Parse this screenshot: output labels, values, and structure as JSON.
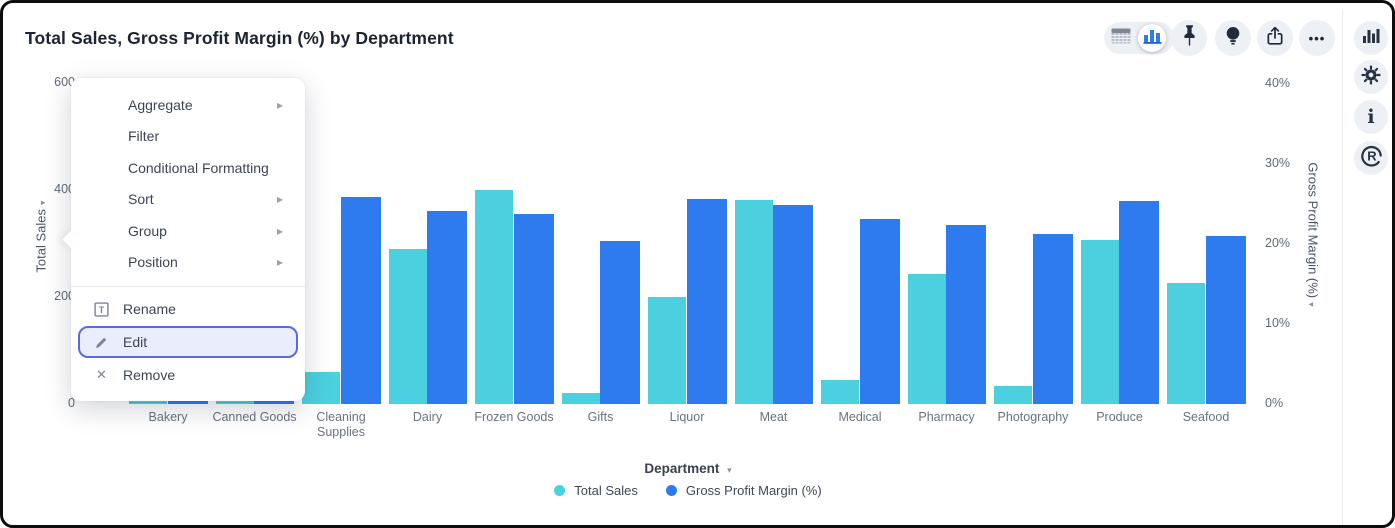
{
  "window": {
    "title": "Total Sales, Gross Profit Margin (%) by Department"
  },
  "toolbar": {
    "view_toggle": {
      "options": [
        "table-view",
        "chart-view"
      ],
      "selected": "chart-view"
    },
    "icons": [
      "table-icon",
      "bar-chart-icon",
      "pin-icon",
      "lightbulb-icon",
      "share-icon",
      "ellipsis-icon"
    ],
    "ellipsis_glyph": "•••"
  },
  "sidebar": {
    "icons": [
      "bar-chart-icon",
      "gear-icon",
      "info-icon",
      "reveal-logo-icon"
    ],
    "info_glyph": "i",
    "logo_glyph": "R"
  },
  "context_menu": {
    "items": [
      {
        "label": "Aggregate",
        "submenu": true
      },
      {
        "label": "Filter",
        "submenu": false
      },
      {
        "label": "Conditional Formatting",
        "submenu": false
      },
      {
        "label": "Sort",
        "submenu": true
      },
      {
        "label": "Group",
        "submenu": true
      },
      {
        "label": "Position",
        "submenu": true
      }
    ],
    "actions": [
      {
        "label": "Rename",
        "icon": "rename-icon",
        "highlighted": false
      },
      {
        "label": "Edit",
        "icon": "edit-icon",
        "highlighted": true
      },
      {
        "label": "Remove",
        "icon": "remove-icon",
        "highlighted": false
      }
    ],
    "submenu_glyph": "▸"
  },
  "chart_data": {
    "type": "bar",
    "title": "Total Sales, Gross Profit Margin (%) by Department",
    "categories": [
      "Bakery",
      "Canned Goods",
      "Cleaning Supplies",
      "Dairy",
      "Frozen Goods",
      "Gifts",
      "Liquor",
      "Meat",
      "Medical",
      "Pharmacy",
      "Photography",
      "Produce",
      "Seafood"
    ],
    "series": [
      {
        "name": "Total Sales",
        "axis": "left",
        "color": "#4BD0E0",
        "values": [
          160,
          280,
          60,
          290,
          400,
          20,
          200,
          382,
          45,
          243,
          33,
          307,
          227
        ]
      },
      {
        "name": "Gross Profit Margin (%)",
        "axis": "right",
        "color": "#2E7BF0",
        "values": [
          23.0,
          24.0,
          25.9,
          24.1,
          23.7,
          20.4,
          25.6,
          24.9,
          23.1,
          22.4,
          21.3,
          25.4,
          21.0
        ]
      }
    ],
    "left_axis": {
      "title": "Total Sales",
      "max": 600,
      "min": 0,
      "ticks": [
        {
          "label": "600",
          "value": 600
        },
        {
          "label": "400",
          "value": 400
        },
        {
          "label": "200",
          "value": 200
        },
        {
          "label": "0",
          "value": 0
        }
      ]
    },
    "right_axis": {
      "title": "Gross Profit Margin (%)",
      "max": 40,
      "min": 0,
      "ticks": [
        {
          "label": "40%",
          "value": 40
        },
        {
          "label": "30%",
          "value": 30
        },
        {
          "label": "20%",
          "value": 20
        },
        {
          "label": "10%",
          "value": 10
        },
        {
          "label": "0%",
          "value": 0
        }
      ]
    },
    "x_axis": {
      "title": "Department"
    },
    "legend": [
      {
        "label": "Total Sales",
        "color": "#4BD0E0"
      },
      {
        "label": "Gross Profit Margin (%)",
        "color": "#2E7BF0"
      }
    ],
    "legend_position": "bottom",
    "grid": false,
    "arrow_glyph": "▾"
  }
}
